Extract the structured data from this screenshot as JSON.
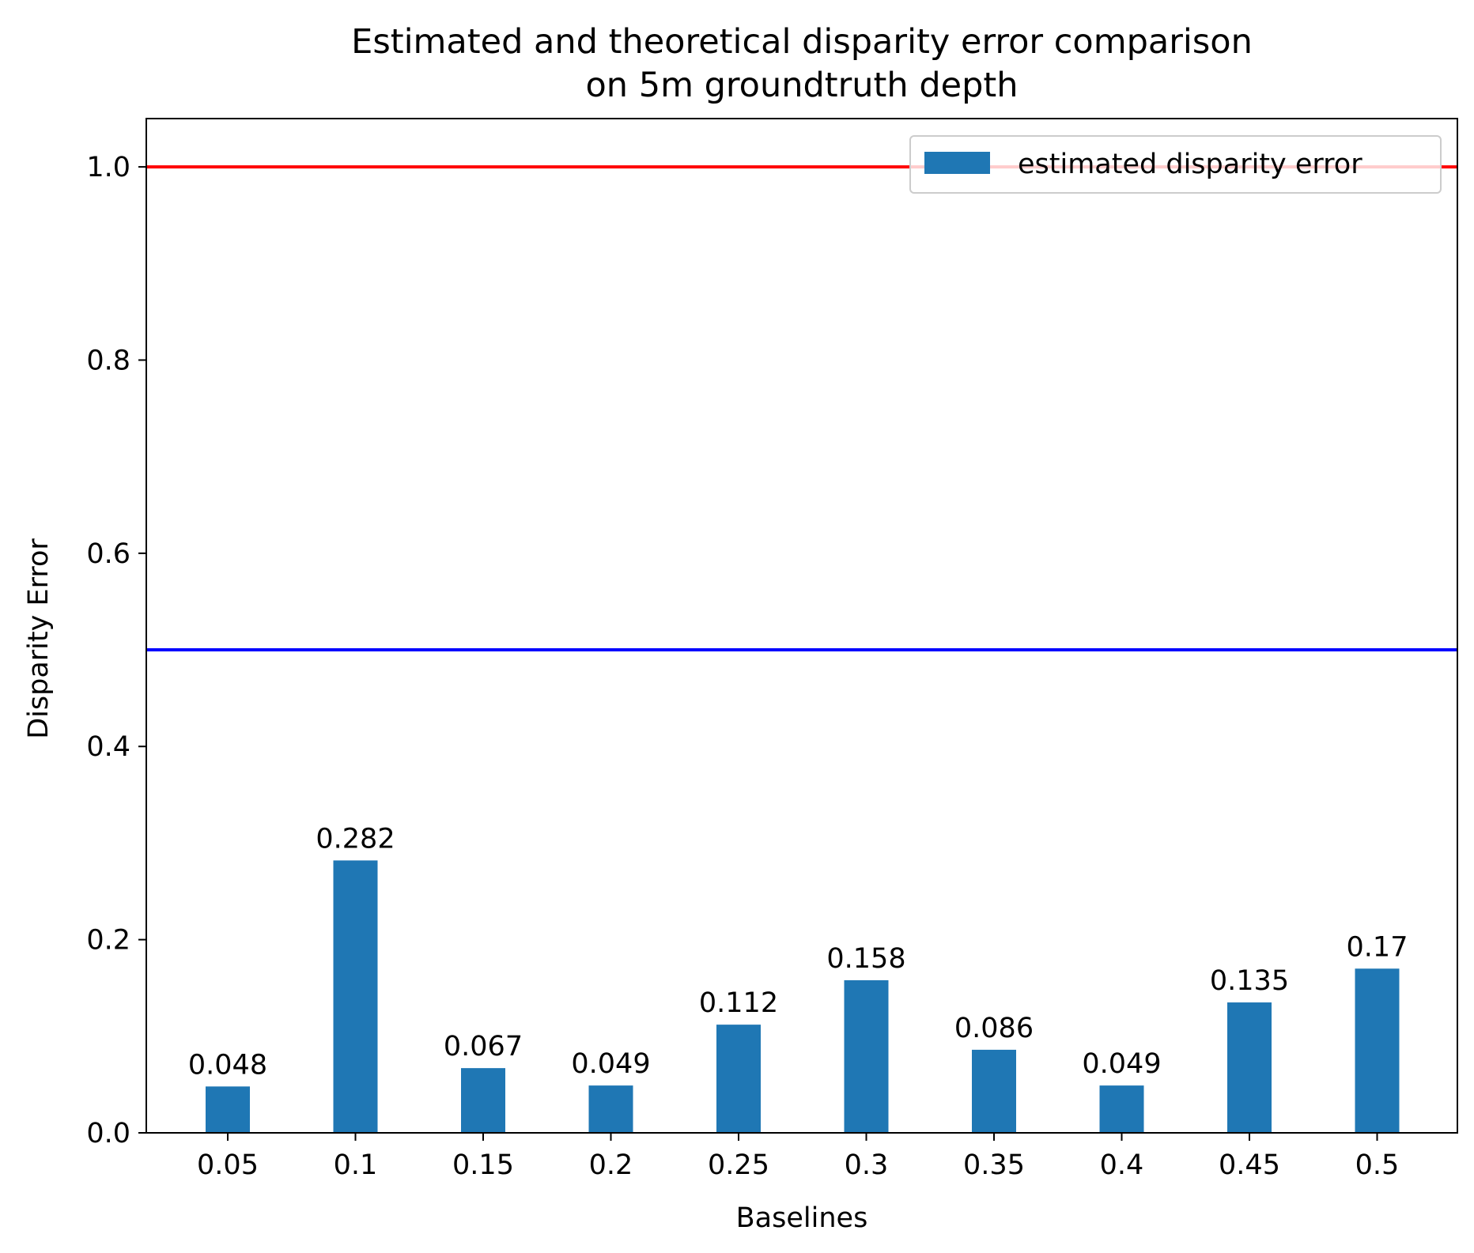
{
  "chart_data": {
    "type": "bar",
    "title_lines": [
      "Estimated and theoretical disparity error comparison",
      "on 5m groundtruth depth"
    ],
    "xlabel": "Baselines",
    "ylabel": "Disparity Error",
    "categories": [
      "0.05",
      "0.1",
      "0.15",
      "0.2",
      "0.25",
      "0.3",
      "0.35",
      "0.4",
      "0.45",
      "0.5"
    ],
    "series": [
      {
        "name": "estimated disparity error",
        "color": "#1f77b4",
        "values": [
          0.048,
          0.282,
          0.067,
          0.049,
          0.112,
          0.158,
          0.086,
          0.049,
          0.135,
          0.17
        ],
        "value_labels": [
          "0.048",
          "0.282",
          "0.067",
          "0.049",
          "0.112",
          "0.158",
          "0.086",
          "0.049",
          "0.135",
          "0.17"
        ]
      }
    ],
    "reference_lines": [
      {
        "y": 1.0,
        "color": "#ff0000"
      },
      {
        "y": 0.5,
        "color": "#0000ff"
      }
    ],
    "ylim": [
      0,
      1.05
    ],
    "yticks": [
      0.0,
      0.2,
      0.4,
      0.6,
      0.8,
      1.0
    ],
    "ytick_labels": [
      "0.0",
      "0.2",
      "0.4",
      "0.6",
      "0.8",
      "1.0"
    ],
    "grid": false,
    "legend_position": "top-right"
  }
}
